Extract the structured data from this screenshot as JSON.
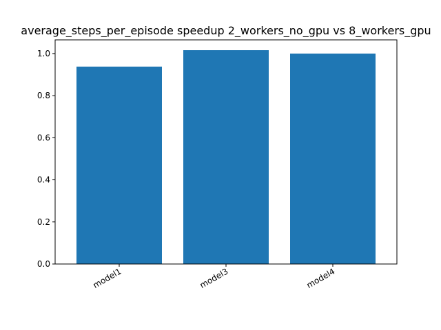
{
  "chart_data": {
    "type": "bar",
    "title": "average_steps_per_episode speedup 2_workers_no_gpu vs 8_workers_gpu",
    "xlabel": "",
    "ylabel": "",
    "categories": [
      "model1",
      "model3",
      "model4"
    ],
    "values": [
      0.938,
      1.016,
      1.0
    ],
    "ylim": [
      0,
      1.065
    ],
    "yticks": [
      0.0,
      0.2,
      0.4,
      0.6,
      0.8,
      1.0
    ],
    "ytick_labels": [
      "0.0",
      "0.2",
      "0.4",
      "0.6",
      "0.8",
      "1.0"
    ],
    "grid": false,
    "legend": "none",
    "bar_color": "#1f77b4"
  }
}
